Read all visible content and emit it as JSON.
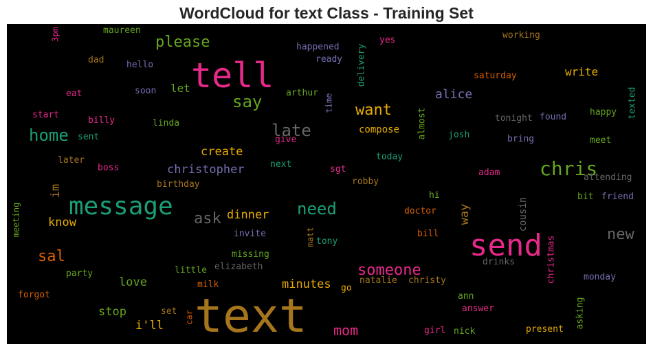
{
  "chart_data": {
    "type": "wordcloud",
    "title": "WordCloud for text Class - Training Set",
    "words": [
      {
        "text": "tell",
        "color": "#e7298a"
      },
      {
        "text": "text",
        "color": "#a6761d"
      },
      {
        "text": "send",
        "color": "#e7298a"
      },
      {
        "text": "message",
        "color": "#1b9e77"
      },
      {
        "text": "chris",
        "color": "#66a61e"
      },
      {
        "text": "please",
        "color": "#66a61e"
      },
      {
        "text": "say",
        "color": "#66a61e"
      },
      {
        "text": "home",
        "color": "#1b9e77"
      },
      {
        "text": "late",
        "color": "#666666"
      },
      {
        "text": "want",
        "color": "#e6ab02"
      },
      {
        "text": "need",
        "color": "#1b9e77"
      },
      {
        "text": "ask",
        "color": "#666666"
      },
      {
        "text": "someone",
        "color": "#e7298a"
      },
      {
        "text": "sal",
        "color": "#d95f02"
      },
      {
        "text": "new",
        "color": "#666666"
      },
      {
        "text": "mom",
        "color": "#e7298a"
      },
      {
        "text": "let",
        "color": "#66a61e"
      },
      {
        "text": "write",
        "color": "#e6ab02"
      },
      {
        "text": "alice",
        "color": "#7570b3"
      },
      {
        "text": "create",
        "color": "#e6ab02"
      },
      {
        "text": "christopher",
        "color": "#7570b3"
      },
      {
        "text": "dinner",
        "color": "#e6ab02"
      },
      {
        "text": "know",
        "color": "#e6ab02"
      },
      {
        "text": "minutes",
        "color": "#e6ab02"
      },
      {
        "text": "love",
        "color": "#66a61e"
      },
      {
        "text": "stop",
        "color": "#66a61e"
      },
      {
        "text": "i'll",
        "color": "#e6ab02"
      },
      {
        "text": "compose",
        "color": "#e6ab02"
      },
      {
        "text": "im",
        "color": "#a6761d"
      },
      {
        "text": "way",
        "color": "#a6761d"
      },
      {
        "text": "cousin",
        "color": "#666666"
      },
      {
        "text": "christmas",
        "color": "#e7298a"
      },
      {
        "text": "asking",
        "color": "#66a61e"
      },
      {
        "text": "delivery",
        "color": "#1b9e77"
      },
      {
        "text": "almost",
        "color": "#66a61e"
      },
      {
        "text": "time",
        "color": "#7570b3"
      },
      {
        "text": "texted",
        "color": "#1b9e77"
      },
      {
        "text": "3pm",
        "color": "#e7298a"
      },
      {
        "text": "meeting",
        "color": "#66a61e"
      },
      {
        "text": "matt",
        "color": "#a6761d"
      },
      {
        "text": "car",
        "color": "#d95f02"
      },
      {
        "text": "maureen",
        "color": "#66a61e"
      },
      {
        "text": "dad",
        "color": "#a6761d"
      },
      {
        "text": "hello",
        "color": "#7570b3"
      },
      {
        "text": "eat",
        "color": "#e7298a"
      },
      {
        "text": "soon",
        "color": "#7570b3"
      },
      {
        "text": "start",
        "color": "#e7298a"
      },
      {
        "text": "billy",
        "color": "#e7298a"
      },
      {
        "text": "linda",
        "color": "#66a61e"
      },
      {
        "text": "sent",
        "color": "#1b9e77"
      },
      {
        "text": "later",
        "color": "#a6761d"
      },
      {
        "text": "boss",
        "color": "#e7298a"
      },
      {
        "text": "birthday",
        "color": "#a6761d"
      },
      {
        "text": "happened",
        "color": "#7570b3"
      },
      {
        "text": "ready",
        "color": "#7570b3"
      },
      {
        "text": "arthur",
        "color": "#66a61e"
      },
      {
        "text": "yes",
        "color": "#e7298a"
      },
      {
        "text": "working",
        "color": "#a6761d"
      },
      {
        "text": "saturday",
        "color": "#d95f02"
      },
      {
        "text": "tonight",
        "color": "#666666"
      },
      {
        "text": "found",
        "color": "#7570b3"
      },
      {
        "text": "happy",
        "color": "#66a61e"
      },
      {
        "text": "josh",
        "color": "#1b9e77"
      },
      {
        "text": "bring",
        "color": "#7570b3"
      },
      {
        "text": "meet",
        "color": "#66a61e"
      },
      {
        "text": "give",
        "color": "#e7298a"
      },
      {
        "text": "today",
        "color": "#1b9e77"
      },
      {
        "text": "next",
        "color": "#1b9e77"
      },
      {
        "text": "sgt",
        "color": "#e7298a"
      },
      {
        "text": "adam",
        "color": "#e7298a"
      },
      {
        "text": "attending",
        "color": "#666666"
      },
      {
        "text": "robby",
        "color": "#a6761d"
      },
      {
        "text": "hi",
        "color": "#66a61e"
      },
      {
        "text": "bit",
        "color": "#66a61e"
      },
      {
        "text": "friend",
        "color": "#7570b3"
      },
      {
        "text": "doctor",
        "color": "#d95f02"
      },
      {
        "text": "invite",
        "color": "#7570b3"
      },
      {
        "text": "bill",
        "color": "#d95f02"
      },
      {
        "text": "tony",
        "color": "#1b9e77"
      },
      {
        "text": "missing",
        "color": "#66a61e"
      },
      {
        "text": "little",
        "color": "#66a61e"
      },
      {
        "text": "elizabeth",
        "color": "#666666"
      },
      {
        "text": "drinks",
        "color": "#666666"
      },
      {
        "text": "party",
        "color": "#66a61e"
      },
      {
        "text": "milk",
        "color": "#d95f02"
      },
      {
        "text": "go",
        "color": "#e6ab02"
      },
      {
        "text": "natalie",
        "color": "#a6761d"
      },
      {
        "text": "christy",
        "color": "#a6761d"
      },
      {
        "text": "monday",
        "color": "#7570b3"
      },
      {
        "text": "forgot",
        "color": "#d95f02"
      },
      {
        "text": "ann",
        "color": "#66a61e"
      },
      {
        "text": "set",
        "color": "#a6761d"
      },
      {
        "text": "answer",
        "color": "#e7298a"
      },
      {
        "text": "girl",
        "color": "#e7298a"
      },
      {
        "text": "nick",
        "color": "#66a61e"
      },
      {
        "text": "present",
        "color": "#e6ab02"
      }
    ]
  }
}
